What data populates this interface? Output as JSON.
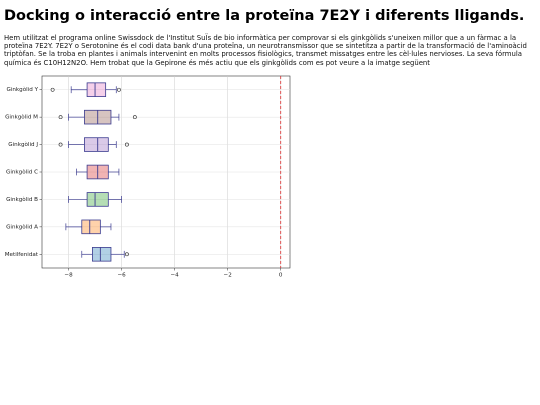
{
  "title": "Docking o interacció entre la proteïna 7E2Y i diferents lligands.",
  "paragraph": "Hem utilitzat el programa online Swissdock de l'Institut SuÏs de bio informàtica per comprovar si els ginkgòlids s'uneixen millor que a un fàrmac a la proteïna 7E2Y. 7E2Y o Serotonine és el codi data bank d'una proteïna, un neurotransmissor que se sintetitza a partir de la transformació de l'aminoàcid triptòfan. Se la troba en plantes i animals intervenint en molts processos fisiològics, transmet missatges entre les cèl·lules nervioses. La seva fórmula química és C10H12N2O. Hem trobat que la Gepirone és més actiu que els ginkgòlids com es pot veure a la imatge següent",
  "chart_data": {
    "type": "box",
    "orientation": "horizontal",
    "boxes": [
      {
        "label": "Ginkgòlid Y",
        "color": "#e377c2",
        "whislo": -7.9,
        "q1": -7.3,
        "med": -7.0,
        "q3": -6.6,
        "whishi": -6.2,
        "fliers": [
          -8.6,
          -6.1
        ]
      },
      {
        "label": "Ginkgòlid M",
        "color": "#8c564b",
        "whislo": -8.0,
        "q1": -7.4,
        "med": -6.9,
        "q3": -6.4,
        "whishi": -6.1,
        "fliers": [
          -8.3,
          -5.5
        ]
      },
      {
        "label": "Ginkgòlid J",
        "color": "#9467bd",
        "whislo": -8.0,
        "q1": -7.4,
        "med": -6.9,
        "q3": -6.5,
        "whishi": -6.2,
        "fliers": [
          -8.3,
          -5.8
        ]
      },
      {
        "label": "Ginkgòlid C",
        "color": "#d62728",
        "whislo": -7.7,
        "q1": -7.3,
        "med": -6.9,
        "q3": -6.5,
        "whishi": -6.1,
        "fliers": []
      },
      {
        "label": "Ginkgòlid B",
        "color": "#2ca02c",
        "whislo": -8.0,
        "q1": -7.3,
        "med": -7.0,
        "q3": -6.5,
        "whishi": -6.0,
        "fliers": []
      },
      {
        "label": "Ginkgòlid A",
        "color": "#ff7f0e",
        "whislo": -8.1,
        "q1": -7.5,
        "med": -7.2,
        "q3": -6.8,
        "whishi": -6.4,
        "fliers": []
      },
      {
        "label": "Metilfenidat",
        "color": "#1f77b4",
        "whislo": -7.5,
        "q1": -7.1,
        "med": -6.8,
        "q3": -6.4,
        "whishi": -5.9,
        "fliers": [
          -5.8
        ]
      }
    ],
    "xlim": [
      -9,
      0.35
    ],
    "xticks": [
      {
        "value": -8,
        "label": "−8"
      },
      {
        "value": -6,
        "label": "−6"
      },
      {
        "value": -4,
        "label": "−4"
      },
      {
        "value": -2,
        "label": "−2"
      },
      0
    ],
    "ref_line": {
      "value": 0,
      "color": "#d62728"
    },
    "grid": true
  }
}
